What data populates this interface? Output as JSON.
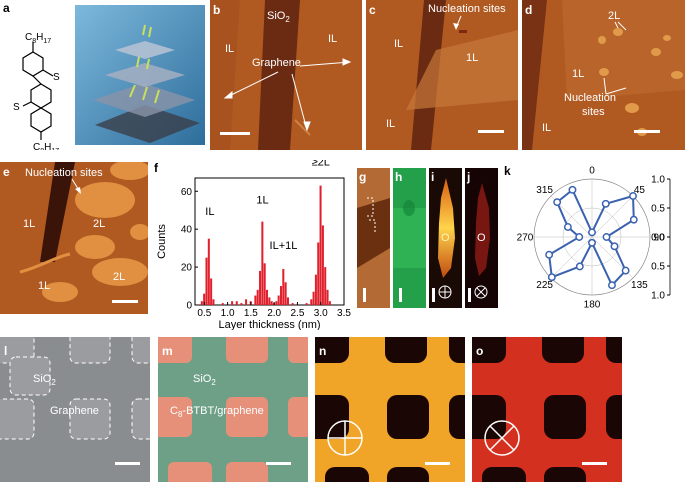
{
  "panels": {
    "a": {
      "letter": "a",
      "sub1": "C",
      "sub1_n": "8",
      "sub1_h": "H",
      "sub1_hn": "17",
      "atom_s": "S"
    },
    "b": {
      "letter": "b",
      "sio2": "SiO",
      "sio2_sub": "2",
      "il_left": "IL",
      "il_right": "IL",
      "graphene": "Graphene"
    },
    "c": {
      "letter": "c",
      "nucleation": "Nucleation sites",
      "il_top": "IL",
      "one_l": "1L",
      "il_bottom": "IL"
    },
    "d": {
      "letter": "d",
      "two_l": "2L",
      "one_l": "1L",
      "nucleation": "Nucleation",
      "sites": "sites",
      "il": "IL"
    },
    "e": {
      "letter": "e",
      "nucleation": "Nucleation sites",
      "one_l_a": "1L",
      "two_l_a": "2L",
      "one_l_b": "1L",
      "two_l_b": "2L"
    },
    "f": {
      "letter": "f"
    },
    "g": {
      "letter": "g"
    },
    "h": {
      "letter": "h"
    },
    "i": {
      "letter": "i",
      "mark": "O"
    },
    "j": {
      "letter": "j",
      "mark": "O"
    },
    "k": {
      "letter": "k"
    },
    "l": {
      "letter": "l",
      "sio2": "SiO",
      "sio2_sub": "2",
      "graphene": "Graphene"
    },
    "m": {
      "letter": "m",
      "sio2": "SiO",
      "sio2_sub": "2",
      "label_pre": "C",
      "label_sub": "8",
      "label_post": "-BTBT/graphene"
    },
    "n": {
      "letter": "n"
    },
    "o": {
      "letter": "o"
    }
  },
  "chart_data": [
    {
      "type": "bar",
      "panel": "f",
      "xlabel": "Layer thickness (nm)",
      "ylabel": "Counts",
      "xlim": [
        0.3,
        3.5
      ],
      "ylim": [
        0,
        67
      ],
      "xticks": [
        "0.5",
        "1.0",
        "1.5",
        "2.0",
        "2.5",
        "3.0",
        "3.5"
      ],
      "yticks": [
        "0",
        "20",
        "40",
        "60"
      ],
      "bar_color": "#e0202c",
      "bar_width": 0.05,
      "x": [
        0.45,
        0.5,
        0.55,
        0.6,
        0.65,
        0.7,
        0.8,
        0.9,
        1.0,
        1.1,
        1.2,
        1.3,
        1.4,
        1.5,
        1.6,
        1.65,
        1.7,
        1.75,
        1.8,
        1.85,
        1.9,
        1.95,
        2.0,
        2.05,
        2.1,
        2.15,
        2.2,
        2.25,
        2.3,
        2.4,
        2.5,
        2.6,
        2.7,
        2.8,
        2.85,
        2.9,
        2.95,
        3.0,
        3.05,
        3.1,
        3.15,
        3.2
      ],
      "values": [
        2,
        6,
        25,
        35,
        14,
        3,
        0,
        1,
        0,
        2,
        2,
        1,
        3,
        2,
        5,
        8,
        18,
        44,
        22,
        8,
        4,
        2,
        1,
        2,
        5,
        10,
        19,
        12,
        4,
        1,
        0,
        0,
        1,
        3,
        7,
        16,
        33,
        63,
        42,
        20,
        8,
        2
      ],
      "annotations": [
        "IL",
        "1L",
        "IL+1L",
        "≥2L"
      ]
    },
    {
      "type": "polar",
      "panel": "k",
      "angle_labels": [
        "0",
        "45",
        "90",
        "135",
        "180",
        "225",
        "270",
        "315"
      ],
      "radial_ticks": [
        "1.0",
        "0.5",
        "0.0",
        "0.5",
        "1.0"
      ],
      "line_color": "#3a62b0",
      "angles_deg": [
        0,
        22.5,
        45,
        67.5,
        90,
        112.5,
        135,
        157.5,
        180,
        202.5,
        225,
        247.5,
        270,
        292.5,
        315,
        337.5
      ],
      "values": [
        0.08,
        0.62,
        1.0,
        0.78,
        0.25,
        0.42,
        0.82,
        0.9,
        0.1,
        0.55,
        0.98,
        0.8,
        0.22,
        0.45,
        0.85,
        0.88
      ]
    }
  ]
}
